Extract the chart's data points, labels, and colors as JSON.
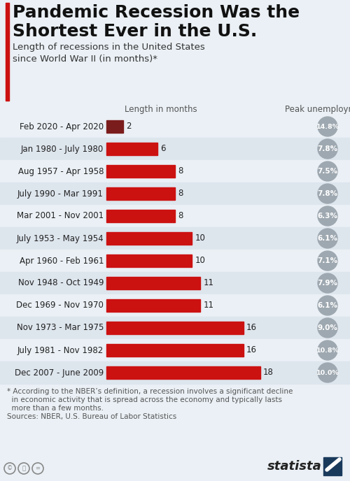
{
  "title_line1": "Pandemic Recession Was the",
  "title_line2": "Shortest Ever in the U.S.",
  "subtitle": "Length of recessions in the United States\nsince World War II (in months)*",
  "col_header_left": "Length in months",
  "col_header_right": "Peak unemployment",
  "categories": [
    "Feb 2020 - Apr 2020",
    "Jan 1980 - July 1980",
    "Aug 1957 - Apr 1958",
    "July 1990 - Mar 1991",
    "Mar 2001 - Nov 2001",
    "July 1953 - May 1954",
    "Apr 1960 - Feb 1961",
    "Nov 1948 - Oct 1949",
    "Dec 1969 - Nov 1970",
    "Nov 1973 - Mar 1975",
    "July 1981 - Nov 1982",
    "Dec 2007 - June 2009"
  ],
  "values": [
    2,
    6,
    8,
    8,
    8,
    10,
    10,
    11,
    11,
    16,
    16,
    18
  ],
  "peak_unemployment": [
    "14.8%",
    "7.8%",
    "7.5%",
    "7.8%",
    "6.3%",
    "6.1%",
    "7.1%",
    "7.9%",
    "6.1%",
    "9.0%",
    "10.8%",
    "10.0%"
  ],
  "bar_color_first": "#7B1C1C",
  "bar_color_rest": "#CC1111",
  "bg_color": "#eaf0f5",
  "row_bg_light": "#eaf0f5",
  "row_bg_dark": "#dde5ed",
  "circle_color": "#9ea8b0",
  "footnote_line1": "* According to the NBER’s definition, a recession involves a significant decline",
  "footnote_line2": "  in economic activity that is spread across the economy and typically lasts",
  "footnote_line3": "  more than a few months.",
  "footnote_line4": "Sources: NBER, U.S. Bureau of Labor Statistics",
  "title_bar_color": "#CC1111",
  "max_value": 18,
  "title_fontsize": 18,
  "subtitle_fontsize": 9.5,
  "label_fontsize": 8.5,
  "value_fontsize": 8.5,
  "circle_text_fontsize": 7.5,
  "header_fontsize": 8.5,
  "footnote_fontsize": 7.5
}
